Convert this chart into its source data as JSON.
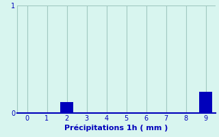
{
  "categories": [
    0,
    1,
    2,
    3,
    4,
    5,
    6,
    7,
    8,
    9
  ],
  "values": [
    0,
    0,
    0.1,
    0,
    0,
    0,
    0,
    0,
    0,
    0.2
  ],
  "bar_color": "#0000bb",
  "background_color": "#d8f5ef",
  "plot_bg_color": "#d8f5ef",
  "grid_color": "#a0c8c0",
  "axis_color": "#0000bb",
  "text_color": "#0000bb",
  "xlabel": "Précipitations 1h ( mm )",
  "xlim": [
    -0.5,
    9.5
  ],
  "ylim": [
    0,
    1.0
  ],
  "yticks": [
    0,
    1
  ],
  "xticks": [
    0,
    1,
    2,
    3,
    4,
    5,
    6,
    7,
    8,
    9
  ],
  "xlabel_fontsize": 8,
  "tick_fontsize": 7,
  "bar_width": 0.65
}
